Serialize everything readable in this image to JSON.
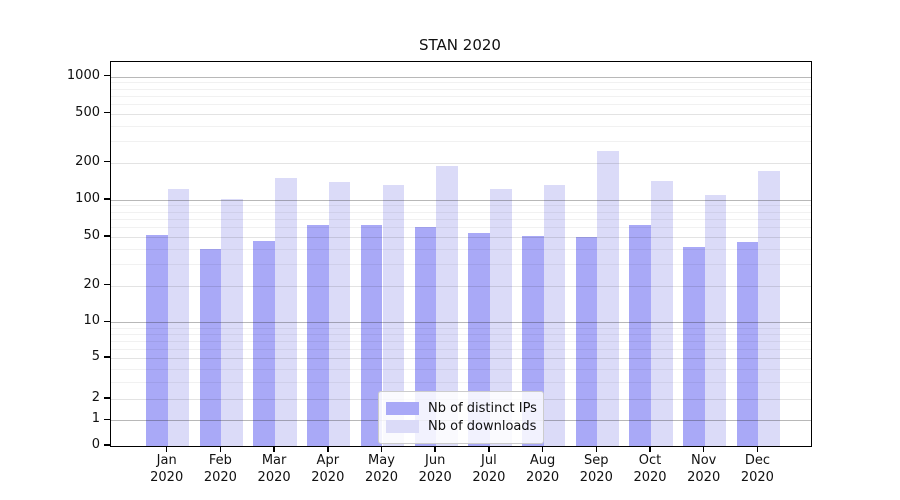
{
  "chart_data": {
    "type": "bar",
    "title": "STAN 2020",
    "categories": [
      "Jan",
      "Feb",
      "Mar",
      "Apr",
      "May",
      "Jun",
      "Jul",
      "Aug",
      "Sep",
      "Oct",
      "Nov",
      "Dec"
    ],
    "categories_line2": "2020",
    "series": [
      {
        "name": "Nb of distinct IPs",
        "color": "#a9a9f7",
        "values": [
          52,
          40,
          46,
          62,
          62,
          60,
          54,
          51,
          50,
          63,
          41,
          45
        ]
      },
      {
        "name": "Nb of downloads",
        "color": "#dbdbf8",
        "values": [
          122,
          102,
          150,
          140,
          132,
          188,
          122,
          132,
          250,
          142,
          110,
          172
        ]
      }
    ],
    "yscale": "symlog",
    "yticks": [
      0,
      1,
      2,
      5,
      10,
      20,
      50,
      100,
      200,
      500,
      1000
    ],
    "ylim": [
      0,
      1300
    ],
    "grid": true,
    "legend_position": "lower center",
    "xlabel": "",
    "ylabel": ""
  }
}
